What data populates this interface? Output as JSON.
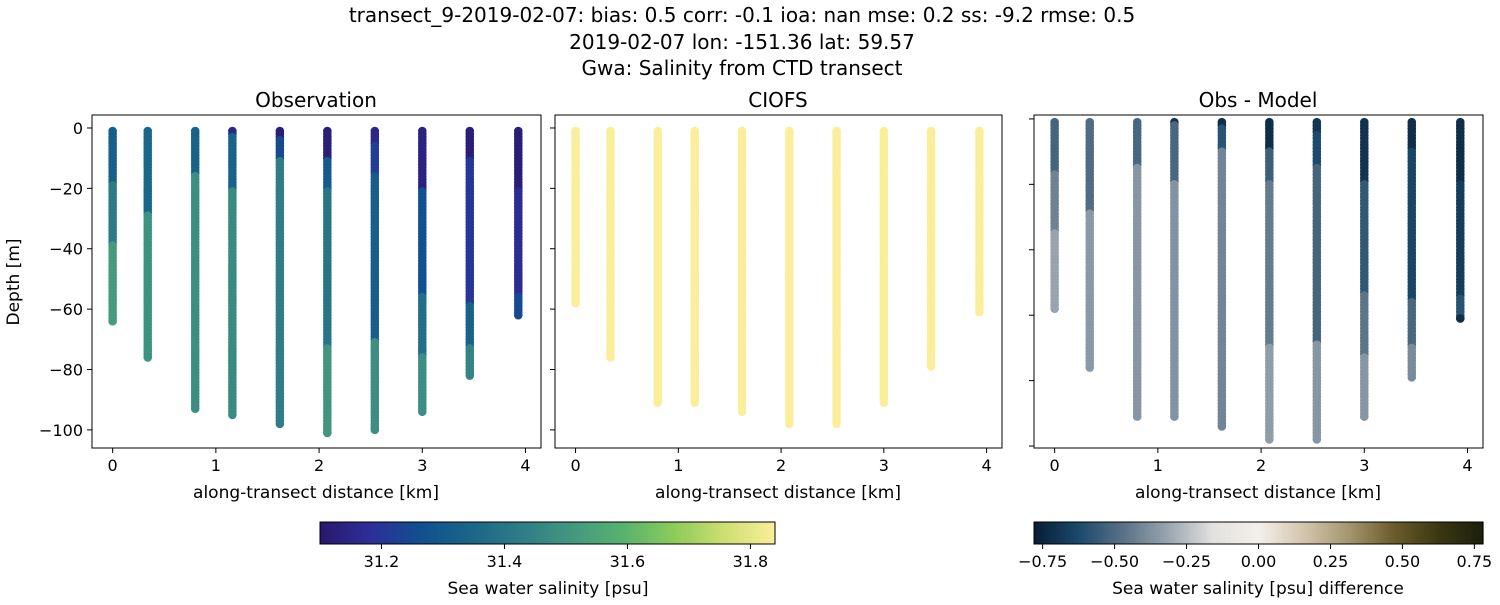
{
  "title_lines": [
    "transect_9-2019-02-07: bias: 0.5  corr: -0.1  ioa: nan  mse: 0.2  ss: -9.2  rmse: 0.5",
    "2019-02-07 lon: -151.36 lat: 59.57",
    "Gwa: Salinity from CTD transect"
  ],
  "chart_data": [
    {
      "type": "scatter",
      "title": "Observation",
      "xlabel": "along-transect distance [km]",
      "ylabel": "Depth [m]",
      "xlim": [
        -0.2,
        4.15
      ],
      "ylim": [
        -106,
        4.3
      ],
      "xticks": [
        "0",
        "1",
        "2",
        "3",
        "4"
      ],
      "yticks": [
        "0",
        "−20",
        "−40",
        "−60",
        "−80",
        "−100"
      ],
      "colormap": "haline",
      "stations": [
        {
          "x": 0.0,
          "segments": [
            [
              0,
              18,
              31.32
            ],
            [
              18,
              38,
              31.42
            ],
            [
              38,
              64,
              31.52
            ]
          ]
        },
        {
          "x": 0.34,
          "segments": [
            [
              0,
              28,
              31.35
            ],
            [
              28,
              76,
              31.49
            ]
          ]
        },
        {
          "x": 0.8,
          "segments": [
            [
              0,
              15,
              31.33
            ],
            [
              15,
              93,
              31.48
            ]
          ]
        },
        {
          "x": 1.16,
          "segments": [
            [
              0,
              2,
              31.15
            ],
            [
              2,
              20,
              31.33
            ],
            [
              20,
              95,
              31.47
            ]
          ]
        },
        {
          "x": 1.62,
          "segments": [
            [
              0,
              3,
              31.12
            ],
            [
              3,
              10,
              31.25
            ],
            [
              10,
              98,
              31.43
            ]
          ]
        },
        {
          "x": 2.08,
          "segments": [
            [
              0,
              10,
              31.12
            ],
            [
              10,
              20,
              31.3
            ],
            [
              20,
              72,
              31.4
            ],
            [
              72,
              101,
              31.5
            ]
          ]
        },
        {
          "x": 2.54,
          "segments": [
            [
              0,
              5,
              31.15
            ],
            [
              5,
              15,
              31.22
            ],
            [
              15,
              70,
              31.32
            ],
            [
              70,
              100,
              31.48
            ]
          ]
        },
        {
          "x": 3.0,
          "segments": [
            [
              0,
              20,
              31.14
            ],
            [
              20,
              55,
              31.27
            ],
            [
              55,
              75,
              31.38
            ],
            [
              75,
              94,
              31.48
            ]
          ]
        },
        {
          "x": 3.46,
          "segments": [
            [
              0,
              10,
              31.12
            ],
            [
              10,
              58,
              31.2
            ],
            [
              58,
              72,
              31.33
            ],
            [
              72,
              82,
              31.45
            ]
          ]
        },
        {
          "x": 3.93,
          "segments": [
            [
              0,
              20,
              31.12
            ],
            [
              20,
              55,
              31.17
            ],
            [
              55,
              62,
              31.25
            ]
          ]
        }
      ]
    },
    {
      "type": "scatter",
      "title": "CIOFS",
      "xlabel": "along-transect distance [km]",
      "xlim": [
        -0.2,
        4.15
      ],
      "ylim": [
        -106,
        4.3
      ],
      "xticks": [
        "0",
        "1",
        "2",
        "3",
        "4"
      ],
      "colormap": "haline",
      "stations": [
        {
          "x": 0.0,
          "bottom": 58,
          "value": 31.84
        },
        {
          "x": 0.34,
          "bottom": 76,
          "value": 31.84
        },
        {
          "x": 0.8,
          "bottom": 91,
          "value": 31.84
        },
        {
          "x": 1.16,
          "bottom": 91,
          "value": 31.84
        },
        {
          "x": 1.62,
          "bottom": 94,
          "value": 31.84
        },
        {
          "x": 2.08,
          "bottom": 98,
          "value": 31.84
        },
        {
          "x": 2.54,
          "bottom": 98,
          "value": 31.84
        },
        {
          "x": 3.0,
          "bottom": 91,
          "value": 31.84
        },
        {
          "x": 3.46,
          "bottom": 79,
          "value": 31.84
        },
        {
          "x": 3.93,
          "bottom": 61,
          "value": 31.84
        }
      ]
    },
    {
      "type": "scatter",
      "title": "Obs - Model",
      "xlabel": "along-transect distance [km]",
      "xlim": [
        -0.2,
        4.15
      ],
      "ylim": [
        -100.6,
        1.2
      ],
      "xticks": [
        "0",
        "1",
        "2",
        "3",
        "4"
      ],
      "colormap": "diff",
      "note_values": "difference = observation - model"
    }
  ],
  "colorbars": [
    {
      "label": "Sea water salinity [psu]",
      "range": [
        31.1,
        31.84
      ],
      "ticks": [
        "31.2",
        "31.4",
        "31.6",
        "31.8"
      ],
      "tick_values": [
        31.2,
        31.4,
        31.6,
        31.8
      ],
      "colormap": "haline"
    },
    {
      "label": "Sea water salinity [psu] difference",
      "range": [
        -0.78,
        0.78
      ],
      "ticks": [
        "−0.75",
        "−0.50",
        "−0.25",
        "0.00",
        "0.25",
        "0.50",
        "0.75"
      ],
      "tick_values": [
        -0.75,
        -0.5,
        -0.25,
        0,
        0.25,
        0.5,
        0.75
      ],
      "colormap": "diff"
    }
  ],
  "colors": {
    "haline": [
      "#29186b",
      "#2d2f9a",
      "#10508f",
      "#1b6689",
      "#2f7d87",
      "#44987f",
      "#58b26f",
      "#8ccb5a",
      "#cddf70",
      "#fbee9b"
    ],
    "diff": [
      "#081d35",
      "#1b4a6c",
      "#5a7286",
      "#9aa6b1",
      "#e3e2e0",
      "#f3efea",
      "#d4c6ad",
      "#a59670",
      "#6d5c2b",
      "#3c3812",
      "#1b1f0b"
    ]
  }
}
